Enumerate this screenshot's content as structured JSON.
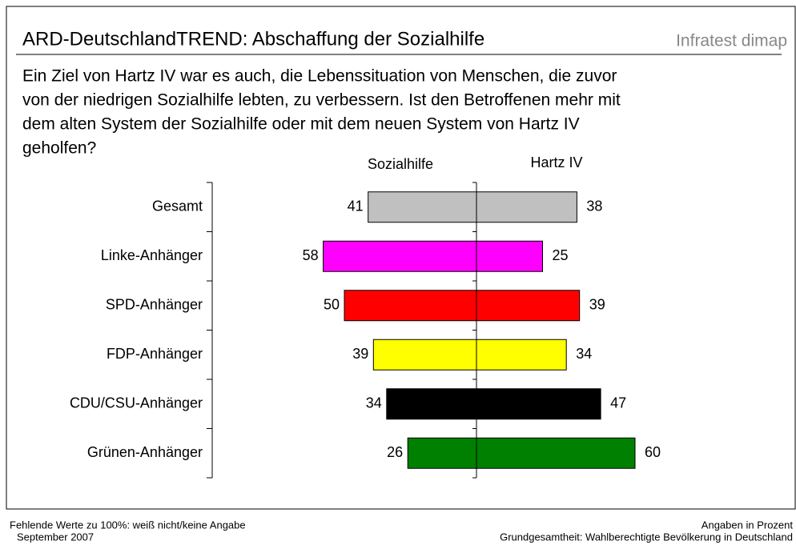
{
  "chart_data": {
    "type": "diverging_bar",
    "title": "ARD-DeutschlandTREND: Abschaffung der Sozialhilfe",
    "brand": "Infratest dimap",
    "question_lines": [
      "Ein Ziel von Hartz IV war es auch, die Lebenssituation von Menschen, die zuvor",
      "von der niedrigen Sozialhilfe lebten, zu verbessern. Ist den Betroffenen mehr mit",
      "dem alten System der Sozialhilfe oder mit dem neuen System von Hartz IV",
      "geholfen?"
    ],
    "categories": [
      "Gesamt",
      "Linke-Anhänger",
      "SPD-Anhänger",
      "FDP-Anhänger",
      "CDU/CSU-Anhänger",
      "Grünen-Anhänger"
    ],
    "colors": [
      "#c0c0c0",
      "#ff00ff",
      "#ff0000",
      "#ffff00",
      "#000000",
      "#008000"
    ],
    "series": [
      {
        "name": "Sozialhilfe",
        "values": [
          41,
          58,
          50,
          39,
          34,
          26
        ]
      },
      {
        "name": "Hartz IV",
        "values": [
          38,
          25,
          39,
          34,
          47,
          60
        ]
      }
    ],
    "xlim": [
      -100,
      100
    ],
    "footer_left": [
      "Fehlende Werte zu 100%: weiß nicht/keine Angabe",
      "September 2007"
    ],
    "footer_right": [
      "Angaben in Prozent",
      "Grundgesamtheit: Wahlberechtigte Bevölkerung in Deutschland"
    ]
  }
}
